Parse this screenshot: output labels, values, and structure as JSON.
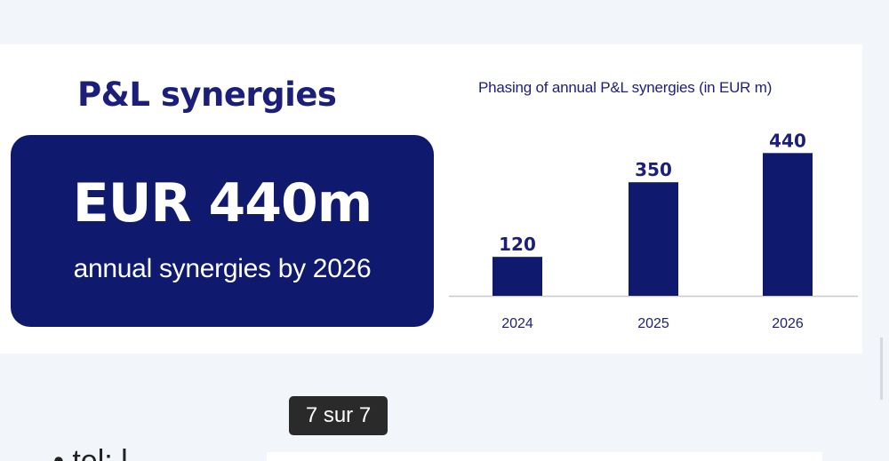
{
  "slide": {
    "title": "P&L synergies",
    "headline_amount": "EUR 440m",
    "headline_subtitle": "annual synergies by 2026"
  },
  "chart_data": {
    "type": "bar",
    "title": "Phasing of annual P&L synergies (in EUR m)",
    "categories": [
      "2024",
      "2025",
      "2026"
    ],
    "values": [
      120,
      350,
      440
    ],
    "xlabel": "",
    "ylabel": "",
    "ylim": [
      0,
      460
    ],
    "grid": false,
    "colors": {
      "bar": "#0f1a6e",
      "label": "#1b1f7a",
      "axis": "#c9c9c9"
    }
  },
  "pager": {
    "label": "7 sur 7"
  },
  "partial_text": "• tel: l"
}
